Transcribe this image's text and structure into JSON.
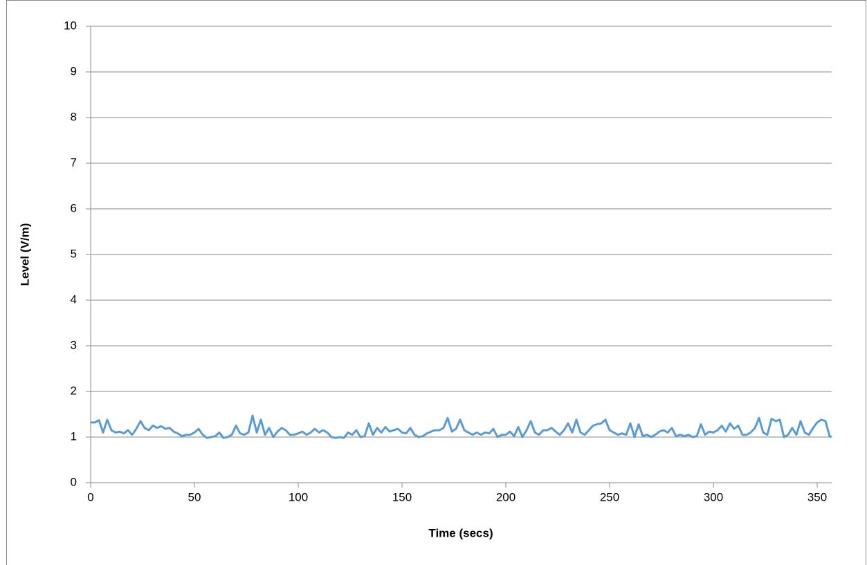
{
  "chart_data": {
    "type": "line",
    "xlabel": "Time (secs)",
    "ylabel": "Level (V/m)",
    "xlim": [
      0,
      357
    ],
    "xticks": [
      0,
      50,
      100,
      150,
      200,
      250,
      300,
      350
    ],
    "ylim": [
      0,
      10
    ],
    "yticks": [
      0,
      1,
      2,
      3,
      4,
      5,
      6,
      7,
      8,
      9,
      10
    ],
    "grid": true,
    "x": [
      0,
      2,
      4,
      6,
      8,
      10,
      12,
      14,
      16,
      18,
      20,
      22,
      24,
      26,
      28,
      30,
      32,
      34,
      36,
      38,
      40,
      42,
      44,
      46,
      48,
      50,
      52,
      54,
      56,
      58,
      60,
      62,
      64,
      66,
      68,
      70,
      72,
      74,
      76,
      78,
      80,
      82,
      84,
      86,
      88,
      90,
      92,
      94,
      96,
      98,
      100,
      102,
      104,
      106,
      108,
      110,
      112,
      114,
      116,
      118,
      120,
      122,
      124,
      126,
      128,
      130,
      132,
      134,
      136,
      138,
      140,
      142,
      144,
      146,
      148,
      150,
      152,
      154,
      156,
      158,
      160,
      162,
      164,
      166,
      168,
      170,
      172,
      174,
      176,
      178,
      180,
      182,
      184,
      186,
      188,
      190,
      192,
      194,
      196,
      198,
      200,
      202,
      204,
      206,
      208,
      210,
      212,
      214,
      216,
      218,
      220,
      222,
      224,
      226,
      228,
      230,
      232,
      234,
      236,
      238,
      240,
      242,
      244,
      246,
      248,
      250,
      252,
      254,
      256,
      258,
      260,
      262,
      264,
      266,
      268,
      270,
      272,
      274,
      276,
      278,
      280,
      282,
      284,
      286,
      288,
      290,
      292,
      294,
      296,
      298,
      300,
      302,
      304,
      306,
      308,
      310,
      312,
      314,
      316,
      318,
      320,
      322,
      324,
      326,
      328,
      330,
      332,
      334,
      336,
      338,
      340,
      342,
      344,
      346,
      348,
      350,
      352,
      354,
      356,
      357
    ],
    "series": [
      {
        "name": "Level",
        "color": "#5b9bd5",
        "values": [
          1.32,
          1.32,
          1.37,
          1.1,
          1.38,
          1.15,
          1.1,
          1.12,
          1.08,
          1.15,
          1.05,
          1.18,
          1.35,
          1.2,
          1.15,
          1.25,
          1.2,
          1.24,
          1.18,
          1.2,
          1.12,
          1.08,
          1.02,
          1.05,
          1.05,
          1.1,
          1.18,
          1.05,
          0.98,
          1.0,
          1.02,
          1.1,
          0.98,
          1.0,
          1.05,
          1.25,
          1.08,
          1.05,
          1.1,
          1.47,
          1.1,
          1.38,
          1.05,
          1.2,
          1.0,
          1.12,
          1.2,
          1.15,
          1.05,
          1.05,
          1.08,
          1.12,
          1.05,
          1.1,
          1.18,
          1.1,
          1.15,
          1.1,
          1.0,
          0.98,
          1.0,
          0.98,
          1.1,
          1.05,
          1.15,
          1.0,
          1.02,
          1.3,
          1.05,
          1.2,
          1.1,
          1.22,
          1.12,
          1.15,
          1.18,
          1.1,
          1.08,
          1.2,
          1.05,
          1.0,
          1.02,
          1.08,
          1.12,
          1.15,
          1.15,
          1.2,
          1.42,
          1.12,
          1.18,
          1.38,
          1.15,
          1.1,
          1.05,
          1.1,
          1.05,
          1.1,
          1.08,
          1.18,
          1.0,
          1.05,
          1.05,
          1.12,
          1.02,
          1.22,
          1.0,
          1.15,
          1.35,
          1.1,
          1.05,
          1.15,
          1.15,
          1.2,
          1.12,
          1.05,
          1.15,
          1.3,
          1.1,
          1.38,
          1.1,
          1.05,
          1.15,
          1.25,
          1.28,
          1.3,
          1.38,
          1.15,
          1.1,
          1.05,
          1.08,
          1.05,
          1.3,
          1.0,
          1.28,
          1.02,
          1.05,
          1.0,
          1.05,
          1.12,
          1.15,
          1.1,
          1.2,
          1.02,
          1.05,
          1.02,
          1.05,
          1.0,
          1.02,
          1.28,
          1.05,
          1.12,
          1.1,
          1.15,
          1.25,
          1.12,
          1.3,
          1.18,
          1.25,
          1.05,
          1.05,
          1.1,
          1.2,
          1.42,
          1.1,
          1.05,
          1.4,
          1.35,
          1.38,
          1.0,
          1.05,
          1.2,
          1.05,
          1.35,
          1.1,
          1.05,
          1.2,
          1.32,
          1.38,
          1.35,
          1.02,
          1.0
        ]
      }
    ]
  }
}
